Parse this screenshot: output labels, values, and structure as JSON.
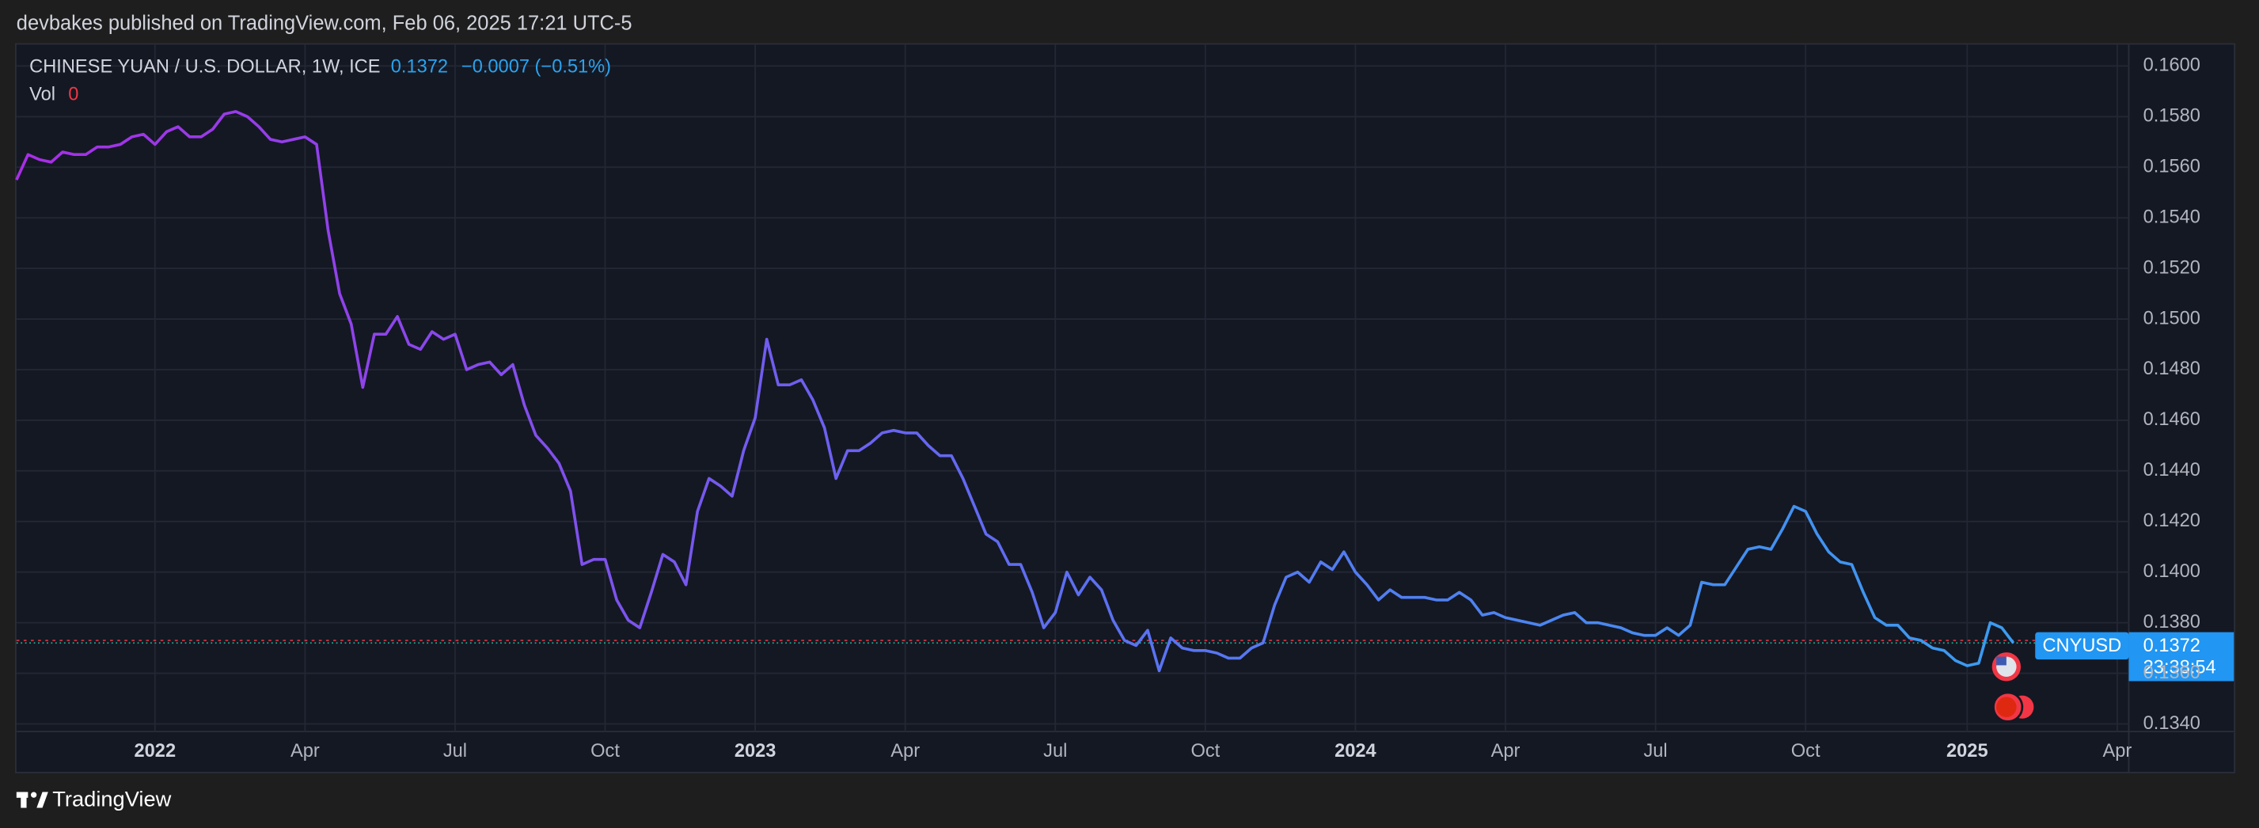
{
  "header": {
    "published": "devbakes published on TradingView.com, Feb 06, 2025 17:21 UTC-5"
  },
  "footer": {
    "brand": "TradingView"
  },
  "chart_data": {
    "type": "line",
    "title": "CHINESE YUAN / U.S. DOLLAR, 1W, ICE",
    "last": 0.1372,
    "change": "−0.0007 (−0.51%)",
    "volume_label": "Vol",
    "volume": 0,
    "symbol": "CNYUSD",
    "countdown": "23:38:54",
    "reference_line": 0.1373,
    "colors": [
      "#a82ee6",
      "#5f6cf2",
      "#3a9cf0"
    ],
    "grid": true,
    "ylim": [
      0.1337,
      0.1609
    ],
    "yticks": [
      {
        "value": 0.134,
        "label": "0.1340"
      },
      {
        "value": 0.136,
        "label": "0.1360"
      },
      {
        "value": 0.138,
        "label": "0.1380"
      },
      {
        "value": 0.14,
        "label": "0.1400"
      },
      {
        "value": 0.142,
        "label": "0.1420"
      },
      {
        "value": 0.144,
        "label": "0.1440"
      },
      {
        "value": 0.146,
        "label": "0.1460"
      },
      {
        "value": 0.148,
        "label": "0.1480"
      },
      {
        "value": 0.15,
        "label": "0.1500"
      },
      {
        "value": 0.152,
        "label": "0.1520"
      },
      {
        "value": 0.154,
        "label": "0.1540"
      },
      {
        "value": 0.156,
        "label": "0.1560"
      },
      {
        "value": 0.158,
        "label": "0.1580"
      },
      {
        "value": 0.16,
        "label": "0.1600"
      }
    ],
    "categories": [
      null,
      null,
      null,
      null,
      null,
      null,
      null,
      null,
      null,
      null,
      null,
      null,
      "2022",
      null,
      null,
      null,
      null,
      null,
      null,
      null,
      null,
      null,
      null,
      null,
      null,
      "Apr",
      null,
      null,
      null,
      null,
      null,
      null,
      null,
      null,
      null,
      null,
      null,
      null,
      "Jul",
      null,
      null,
      null,
      null,
      null,
      null,
      null,
      null,
      null,
      null,
      null,
      null,
      "Oct",
      null,
      null,
      null,
      null,
      null,
      null,
      null,
      null,
      null,
      null,
      null,
      null,
      "2023",
      null,
      null,
      null,
      null,
      null,
      null,
      null,
      null,
      null,
      null,
      null,
      null,
      "Apr",
      null,
      null,
      null,
      null,
      null,
      null,
      null,
      null,
      null,
      null,
      null,
      null,
      "Jul",
      null,
      null,
      null,
      null,
      null,
      null,
      null,
      null,
      null,
      null,
      null,
      null,
      "Oct",
      null,
      null,
      null,
      null,
      null,
      null,
      null,
      null,
      null,
      null,
      null,
      null,
      "2024",
      null,
      null,
      null,
      null,
      null,
      null,
      null,
      null,
      null,
      null,
      null,
      null,
      "Apr",
      null,
      null,
      null,
      null,
      null,
      null,
      null,
      null,
      null,
      null,
      null,
      null,
      "Jul",
      null,
      null,
      null,
      null,
      null,
      null,
      null,
      null,
      null,
      null,
      null,
      null,
      "Oct",
      null,
      null,
      null,
      null,
      null,
      null,
      null,
      null,
      null,
      null,
      null,
      null,
      null,
      "2025",
      null,
      null,
      null,
      null,
      null,
      null,
      null,
      null,
      null,
      null,
      null,
      null,
      "Apr",
      null
    ],
    "values": [
      0.1555,
      0.1565,
      0.1563,
      0.1562,
      0.1566,
      0.1565,
      0.1565,
      0.1568,
      0.1568,
      0.1569,
      0.1572,
      0.1573,
      0.1569,
      0.1574,
      0.1576,
      0.1572,
      0.1572,
      0.1575,
      0.1581,
      0.1582,
      0.158,
      0.1576,
      0.1571,
      0.157,
      0.1571,
      0.1572,
      0.1569,
      0.1535,
      0.151,
      0.1498,
      0.1473,
      0.1494,
      0.1494,
      0.1501,
      0.149,
      0.1488,
      0.1495,
      0.1492,
      0.1494,
      0.148,
      0.1482,
      0.1483,
      0.1478,
      0.1482,
      0.1466,
      0.1454,
      0.1449,
      0.1443,
      0.1432,
      0.1403,
      0.1405,
      0.1405,
      0.1389,
      0.1381,
      0.1378,
      0.1392,
      0.1407,
      0.1404,
      0.1395,
      0.1424,
      0.1437,
      0.1434,
      0.143,
      0.1448,
      0.1461,
      0.1492,
      0.1474,
      0.1474,
      0.1476,
      0.1468,
      0.1457,
      0.1437,
      0.1448,
      0.1448,
      0.1451,
      0.1455,
      0.1456,
      0.1455,
      0.1455,
      0.145,
      0.1446,
      0.1446,
      0.1437,
      0.1426,
      0.1415,
      0.1412,
      0.1403,
      0.1403,
      0.1392,
      0.1378,
      0.1384,
      0.14,
      0.1391,
      0.1398,
      0.1393,
      0.1381,
      0.1373,
      0.1371,
      0.1377,
      0.1361,
      0.1374,
      0.137,
      0.1369,
      0.1369,
      0.1368,
      0.1366,
      0.1366,
      0.137,
      0.1372,
      0.1387,
      0.1398,
      0.14,
      0.1396,
      0.1404,
      0.1401,
      0.1408,
      0.14,
      0.1395,
      0.1389,
      0.1393,
      0.139,
      0.139,
      0.139,
      0.1389,
      0.1389,
      0.1392,
      0.1389,
      0.1383,
      0.1384,
      0.1382,
      0.1381,
      0.138,
      0.1379,
      0.1381,
      0.1383,
      0.1384,
      0.138,
      0.138,
      0.1379,
      0.1378,
      0.1376,
      0.1375,
      0.1375,
      0.1378,
      0.1375,
      0.1379,
      0.1396,
      0.1395,
      0.1395,
      0.1402,
      0.1409,
      0.141,
      0.1409,
      0.1417,
      0.1426,
      0.1424,
      0.1415,
      0.1408,
      0.1404,
      0.1403,
      0.1392,
      0.1382,
      0.1379,
      0.1379,
      0.1374,
      0.1373,
      0.137,
      0.1369,
      0.1365,
      0.1363,
      0.1364,
      0.138,
      0.1378,
      0.1372,
      null,
      null,
      null,
      null,
      null,
      null,
      null,
      null,
      null,
      null
    ]
  }
}
